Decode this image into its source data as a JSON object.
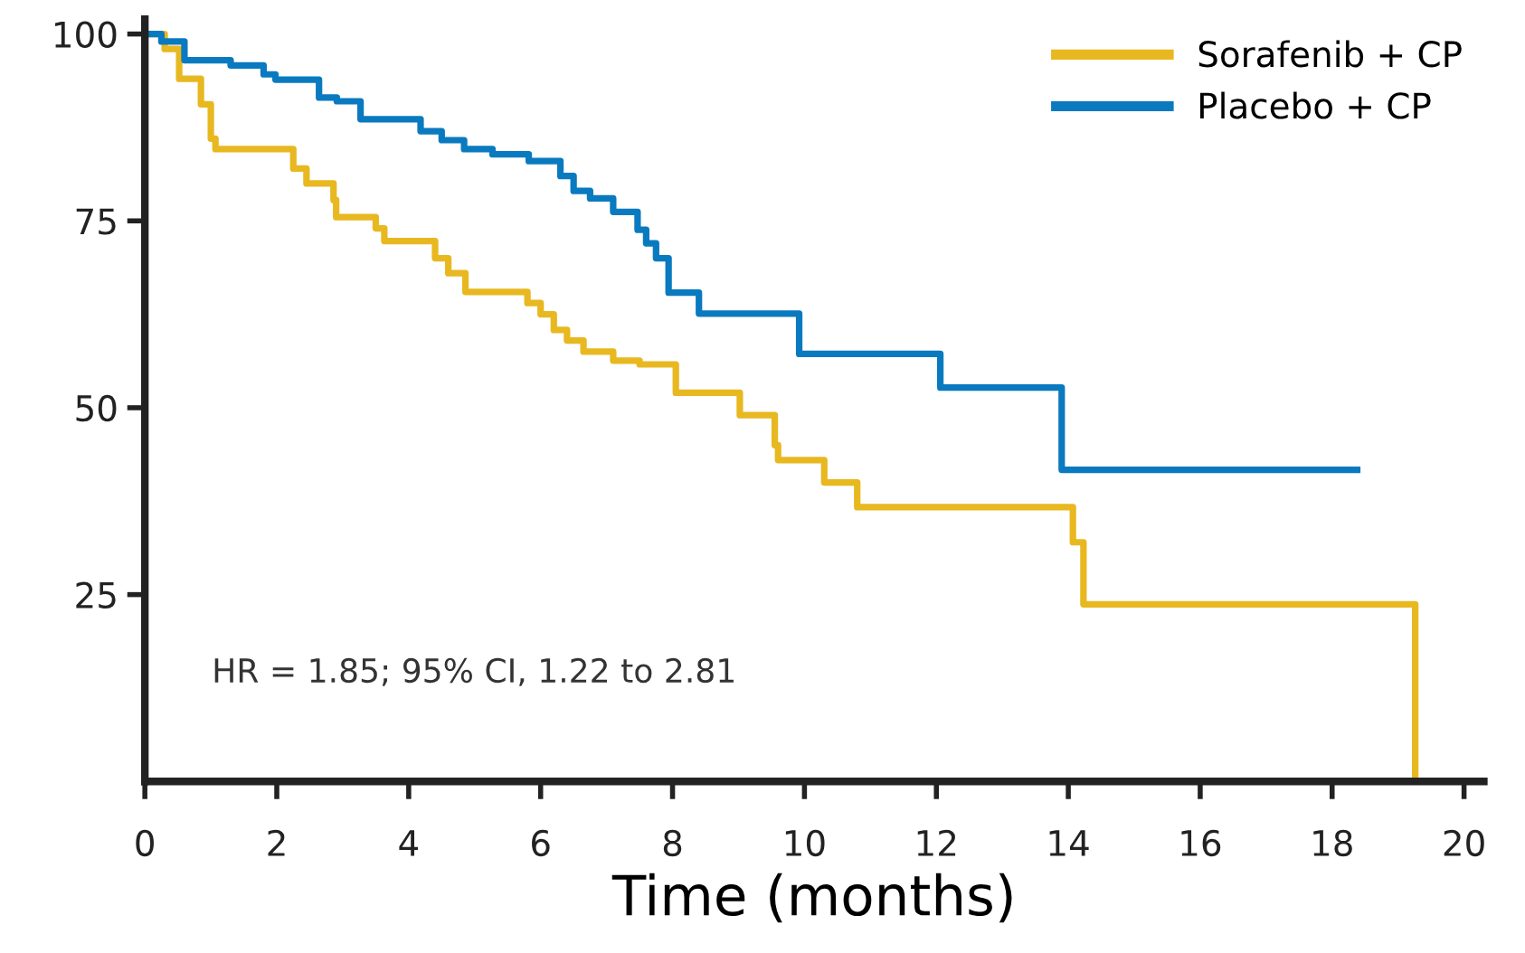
{
  "chart_data": {
    "type": "step",
    "xlabel": "Time (months)",
    "series": [
      {
        "name": "Sorafenib + CP",
        "color": "#e8b820",
        "x": [
          0,
          0.3,
          0.52,
          0.85,
          1.0,
          1.07,
          2.25,
          2.45,
          2.86,
          2.9,
          3.5,
          3.63,
          4.4,
          4.6,
          4.86,
          5.8,
          6.0,
          6.2,
          6.4,
          6.65,
          7.1,
          7.5,
          8.05,
          9.02,
          9.55,
          9.6,
          10.3,
          10.8,
          14.07,
          14.23,
          19.26
        ],
        "values": [
          100,
          98,
          94,
          90.6,
          86,
          84.6,
          82,
          80,
          77.8,
          75.5,
          74,
          72.3,
          70,
          68,
          65.5,
          64,
          62.5,
          60.4,
          59,
          57.5,
          56.3,
          55.8,
          52,
          49,
          45,
          43,
          40,
          36.7,
          32,
          23.7,
          0
        ]
      },
      {
        "name": "Placebo + CP",
        "color": "#0a7ac0",
        "x": [
          0,
          0.25,
          0.6,
          1.3,
          1.8,
          1.98,
          2.64,
          2.91,
          3.27,
          4.18,
          4.5,
          4.84,
          5.27,
          5.82,
          6.3,
          6.5,
          6.75,
          7.1,
          7.47,
          7.6,
          7.75,
          7.94,
          8.4,
          9.92,
          12.06,
          13.9,
          18.38
        ],
        "values": [
          100,
          99,
          96.5,
          95.8,
          94.6,
          93.9,
          91.5,
          91,
          88.6,
          87,
          85.8,
          84.6,
          83.9,
          83,
          81,
          79,
          78,
          76.2,
          73.8,
          72,
          70,
          65.4,
          62.6,
          57.2,
          52.7,
          41.7,
          41.7
        ]
      }
    ],
    "xlim": [
      0,
      20.3
    ],
    "ylim": [
      0,
      102
    ],
    "xticks": [
      0,
      2,
      4,
      6,
      8,
      10,
      12,
      14,
      16,
      18,
      20
    ],
    "yticks": [
      25,
      50,
      75,
      100
    ],
    "annotations": [
      "HR = 1.85; 95% CI, 1.22 to 2.81"
    ],
    "legend": "top right",
    "grid": false,
    "line_style": "solid"
  }
}
